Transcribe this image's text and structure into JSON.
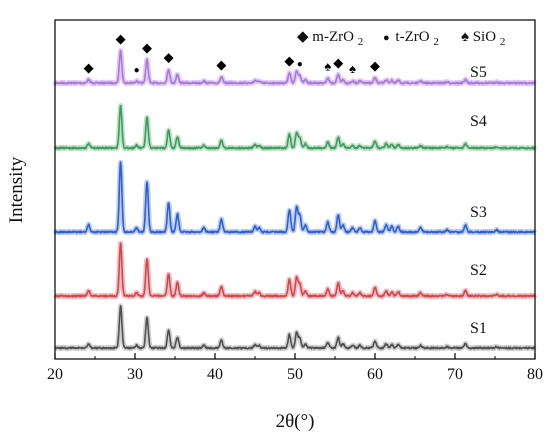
{
  "chart_data": {
    "type": "line",
    "title": "",
    "xlabel": "2θ(°)",
    "ylabel": "Intensity",
    "xlim": [
      20,
      80
    ],
    "xticks": [
      20,
      30,
      40,
      50,
      60,
      70,
      80
    ],
    "yticks_shown": false,
    "grid": false,
    "legend": {
      "placement": "top-right",
      "entries": [
        {
          "marker": "◆",
          "label": "m-ZrO",
          "sub": "2"
        },
        {
          "marker": "●",
          "label": "t-ZrO",
          "sub": "2"
        },
        {
          "marker": "♠",
          "label": "SiO",
          "sub": "2"
        }
      ]
    },
    "peaks": [
      {
        "x": 24.2,
        "h": 0.1
      },
      {
        "x": 28.2,
        "h": 1.0
      },
      {
        "x": 30.2,
        "h": 0.06
      },
      {
        "x": 31.5,
        "h": 0.72
      },
      {
        "x": 34.2,
        "h": 0.42
      },
      {
        "x": 35.3,
        "h": 0.26
      },
      {
        "x": 38.6,
        "h": 0.06
      },
      {
        "x": 40.8,
        "h": 0.18
      },
      {
        "x": 45.0,
        "h": 0.08
      },
      {
        "x": 45.5,
        "h": 0.06
      },
      {
        "x": 49.3,
        "h": 0.32
      },
      {
        "x": 50.2,
        "h": 0.36
      },
      {
        "x": 50.6,
        "h": 0.24
      },
      {
        "x": 51.3,
        "h": 0.1
      },
      {
        "x": 54.1,
        "h": 0.14
      },
      {
        "x": 55.4,
        "h": 0.25
      },
      {
        "x": 56.0,
        "h": 0.1
      },
      {
        "x": 57.2,
        "h": 0.06
      },
      {
        "x": 58.1,
        "h": 0.06
      },
      {
        "x": 60.0,
        "h": 0.16
      },
      {
        "x": 61.4,
        "h": 0.1
      },
      {
        "x": 62.1,
        "h": 0.08
      },
      {
        "x": 62.9,
        "h": 0.08
      },
      {
        "x": 65.7,
        "h": 0.06
      },
      {
        "x": 69.0,
        "h": 0.03
      },
      {
        "x": 71.3,
        "h": 0.1
      },
      {
        "x": 75.2,
        "h": 0.03
      }
    ],
    "series": [
      {
        "name": "S5",
        "color": "#a87ad6",
        "glow": "#e2c9f5",
        "scale": 32
      },
      {
        "name": "S4",
        "color": "#3f9a5c",
        "glow": "#bfe3c9",
        "scale": 42
      },
      {
        "name": "S3",
        "color": "#2f5fd0",
        "glow": "#bccdf2",
        "scale": 70
      },
      {
        "name": "S2",
        "color": "#d04a45",
        "glow": "#f4bcc8",
        "scale": 52
      },
      {
        "name": "S1",
        "color": "#505050",
        "glow": "#d0d0d0",
        "scale": 42
      }
    ],
    "annotations": [
      {
        "x": 24.2,
        "marker": "◆",
        "phase": "m-ZrO2"
      },
      {
        "x": 28.2,
        "marker": "◆",
        "phase": "m-ZrO2"
      },
      {
        "x": 30.2,
        "marker": "●",
        "phase": "t-ZrO2"
      },
      {
        "x": 31.5,
        "marker": "◆",
        "phase": "m-ZrO2"
      },
      {
        "x": 34.2,
        "marker": "◆",
        "phase": "m-ZrO2"
      },
      {
        "x": 40.8,
        "marker": "◆",
        "phase": "m-ZrO2"
      },
      {
        "x": 49.3,
        "marker": "◆",
        "phase": "m-ZrO2"
      },
      {
        "x": 50.6,
        "marker": "●",
        "phase": "t-ZrO2"
      },
      {
        "x": 54.1,
        "marker": "♠",
        "phase": "SiO2"
      },
      {
        "x": 55.4,
        "marker": "◆",
        "phase": "m-ZrO2"
      },
      {
        "x": 57.2,
        "marker": "♠",
        "phase": "SiO2"
      },
      {
        "x": 60.0,
        "marker": "◆",
        "phase": "m-ZrO2"
      }
    ]
  }
}
